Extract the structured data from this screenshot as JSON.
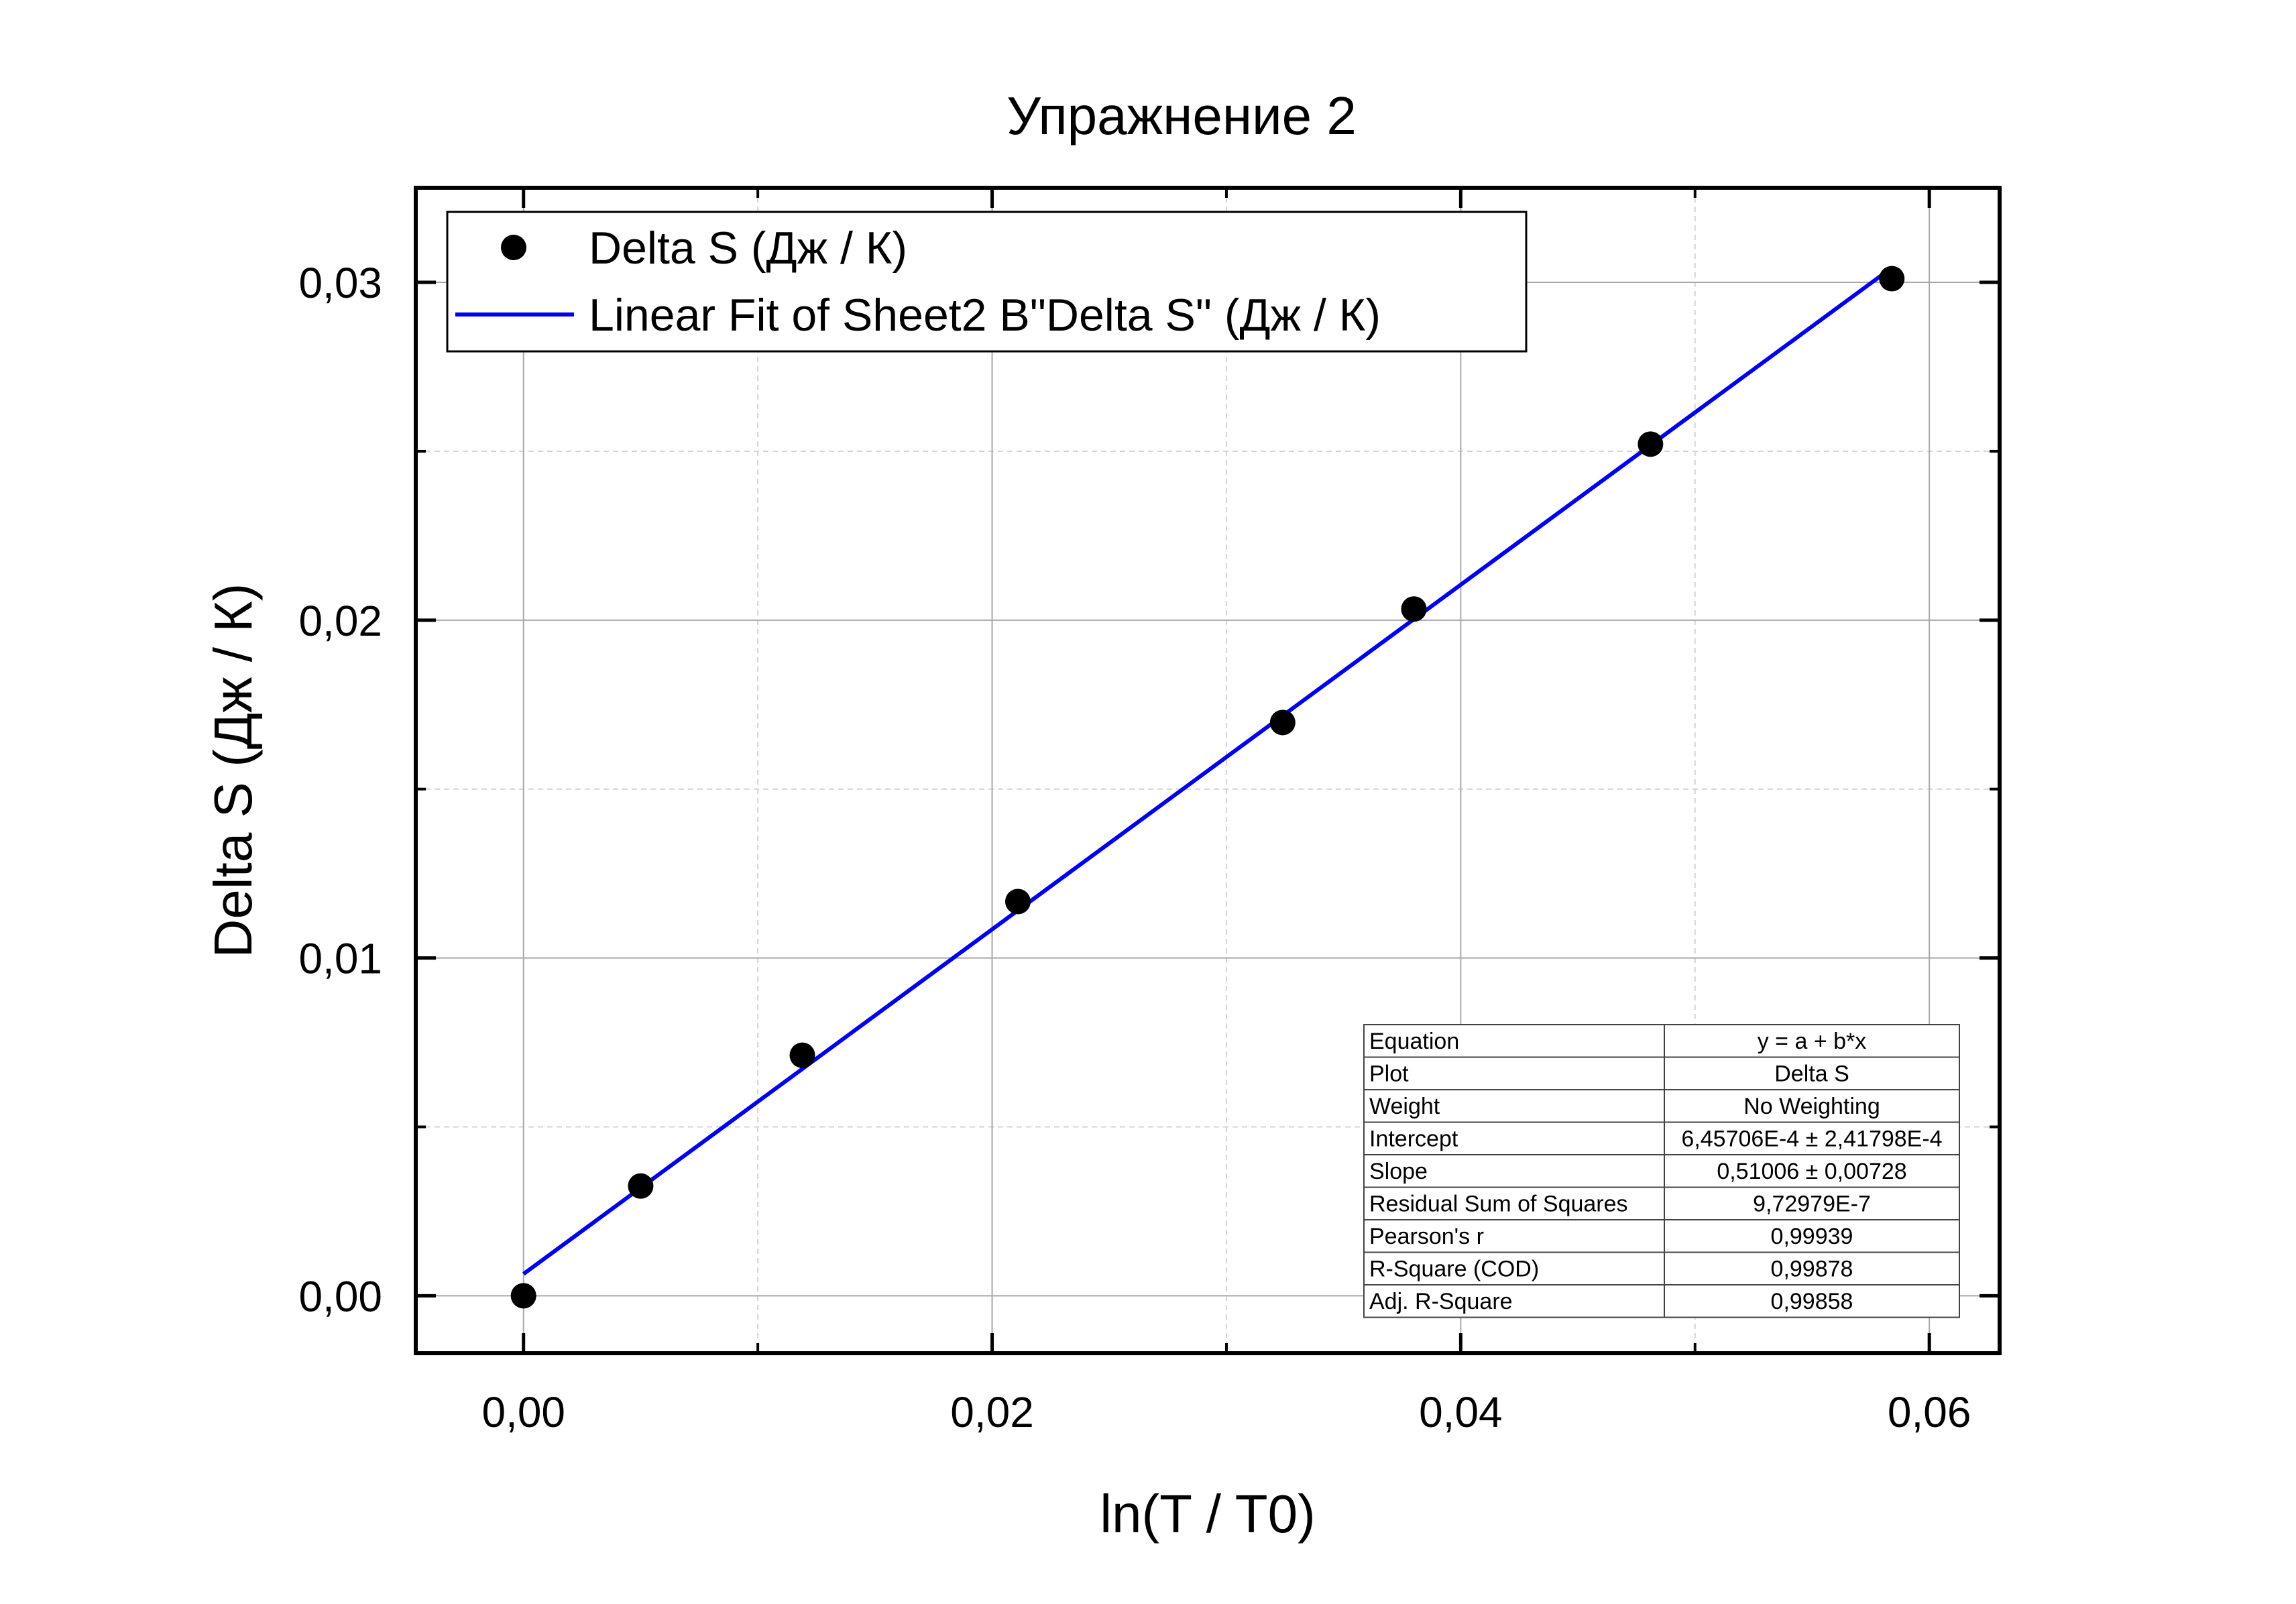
{
  "chart_data": {
    "type": "scatter",
    "title": "Упражнение 2",
    "xlabel": "ln(T / T0)",
    "ylabel": "Delta S (Дж / К)",
    "xlim": [
      -0.0046,
      0.063
    ],
    "ylim": [
      -0.0017,
      0.0328
    ],
    "xticks": [
      0.0,
      0.02,
      0.04,
      0.06
    ],
    "xtick_labels": [
      "0,00",
      "0,02",
      "0,04",
      "0,06"
    ],
    "yticks": [
      0.0,
      0.01,
      0.02,
      0.03
    ],
    "ytick_labels": [
      "0,00",
      "0,01",
      "0,02",
      "0,03"
    ],
    "x_minor_gridlines": [
      0.01,
      0.03,
      0.05
    ],
    "y_minor_gridlines": [
      0.005,
      0.015,
      0.025
    ],
    "grid": true,
    "legend_position": "top-left",
    "series": [
      {
        "name": "Delta S (Дж / К)",
        "kind": "scatter",
        "color": "#000000",
        "x": [
          0.0,
          0.005,
          0.0119,
          0.0211,
          0.0324,
          0.038,
          0.0481,
          0.0584
        ],
        "y": [
          0.0,
          0.00325,
          0.00712,
          0.01167,
          0.01697,
          0.02033,
          0.02521,
          0.03011
        ]
      },
      {
        "name": "Linear Fit of Sheet2 B\"Delta S\" (Дж / К)",
        "kind": "line",
        "color": "#0000ee",
        "x": [
          0.0,
          0.0584
        ],
        "intercept": 0.000645706,
        "slope": 0.51006
      }
    ],
    "stats_table": [
      [
        "Equation",
        "y = a + b*x"
      ],
      [
        "Plot",
        "Delta S"
      ],
      [
        "Weight",
        "No Weighting"
      ],
      [
        "Intercept",
        "6,45706E-4 ± 2,41798E-4"
      ],
      [
        "Slope",
        "0,51006 ± 0,00728"
      ],
      [
        "Residual Sum of Squares",
        "9,72979E-7"
      ],
      [
        "Pearson's r",
        "0,99939"
      ],
      [
        "R-Square (COD)",
        "0,99878"
      ],
      [
        "Adj. R-Square",
        "0,99858"
      ]
    ]
  }
}
